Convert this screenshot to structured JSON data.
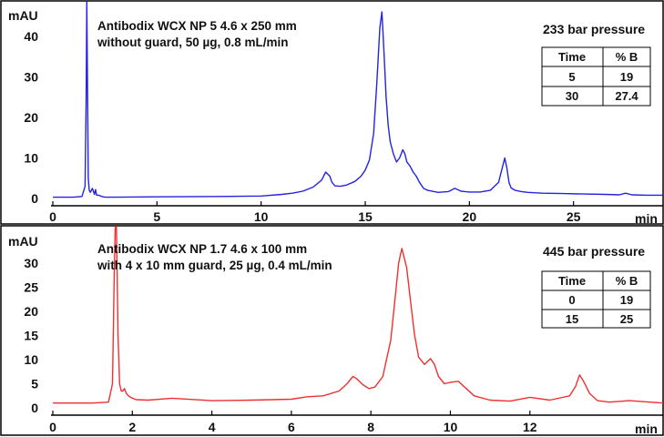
{
  "chart_data": [
    {
      "type": "line",
      "ylabel": "mAU",
      "xlabel": "min",
      "xlim": [
        0,
        29.3
      ],
      "ylim": [
        -1.8,
        48.5
      ],
      "xticks": [
        "0",
        "5",
        "10",
        "15",
        "20",
        "25"
      ],
      "yticks": [
        "0",
        "10",
        "20",
        "30",
        "40"
      ],
      "annotation": [
        "Antibodix WCX NP 5 4.6 x 250 mm",
        "without guard, 50 µg, 0.8 mL/min"
      ],
      "pressure": "233 bar pressure",
      "gradient_table": {
        "headers": [
          "Time",
          "% B"
        ],
        "rows": [
          [
            "5",
            "19"
          ],
          [
            "30",
            "27.4"
          ]
        ]
      },
      "color": "#2323e0",
      "series": [
        {
          "x": [
            0,
            1.0,
            1.4,
            1.55,
            1.6,
            1.63,
            1.66,
            1.7,
            1.75,
            1.8,
            1.9,
            2.0,
            2.05,
            2.1,
            2.2,
            2.35,
            2.5,
            3.0,
            5,
            8,
            10,
            11,
            11.5,
            12,
            12.5,
            12.9,
            13.1,
            13.3,
            13.4,
            13.55,
            13.8,
            14.1,
            14.5,
            14.8,
            15.0,
            15.2,
            15.4,
            15.55,
            15.7,
            15.8,
            15.9,
            16.0,
            16.1,
            16.2,
            16.35,
            16.5,
            16.65,
            16.8,
            16.9,
            17.0,
            17.15,
            17.3,
            17.45,
            17.6,
            17.8,
            18.0,
            18.5,
            19.0,
            19.3,
            19.6,
            20.0,
            20.5,
            21.0,
            21.4,
            21.6,
            21.7,
            21.8,
            21.9,
            22.0,
            22.2,
            22.5,
            22.8,
            23.5,
            24.5,
            25.5,
            26.5,
            27.2,
            27.5,
            27.8,
            28.5,
            29.3
          ],
          "y": [
            0.3,
            0.3,
            0.5,
            3,
            25,
            60,
            30,
            5,
            2,
            1.5,
            2.5,
            1,
            2.2,
            0.8,
            0.8,
            0.5,
            0.3,
            0.3,
            0.4,
            0.5,
            0.6,
            1.0,
            1.3,
            1.8,
            2.8,
            4.5,
            6.5,
            5.5,
            4.0,
            3.1,
            3.0,
            3.3,
            4.2,
            5.5,
            7.0,
            9.5,
            16,
            28,
            42,
            46,
            36,
            25,
            18,
            14,
            11,
            9,
            10,
            12,
            11,
            9,
            8,
            6.5,
            5.5,
            4.0,
            2.5,
            2.0,
            1.5,
            1.7,
            2.5,
            1.8,
            1.6,
            1.6,
            2.0,
            4.0,
            8.0,
            10.0,
            7.5,
            4.0,
            2.6,
            2.0,
            1.7,
            1.5,
            1.3,
            1.2,
            1.1,
            1.0,
            0.9,
            1.3,
            0.9,
            0.8,
            0.8
          ]
        }
      ]
    },
    {
      "type": "line",
      "ylabel": "mAU",
      "xlabel": "min",
      "xlim": [
        0,
        15.35
      ],
      "ylim": [
        -1.5,
        37.5
      ],
      "xticks": [
        "0",
        "2",
        "4",
        "6",
        "8",
        "10",
        "12"
      ],
      "yticks": [
        "0",
        "5",
        "10",
        "15",
        "20",
        "25",
        "30"
      ],
      "annotation": [
        "Antibodix WCX NP 1.7 4.6 x 100  mm",
        "with 4 x 10 mm guard, 25 µg, 0.4 mL/min"
      ],
      "pressure": "445 bar pressure",
      "gradient_table": {
        "headers": [
          "Time",
          "% B"
        ],
        "rows": [
          [
            "0",
            "19"
          ],
          [
            "15",
            "25"
          ]
        ]
      },
      "color": "#f03030",
      "series": [
        {
          "x": [
            0,
            1.0,
            1.4,
            1.5,
            1.54,
            1.57,
            1.6,
            1.64,
            1.68,
            1.72,
            1.76,
            1.8,
            1.85,
            1.9,
            2.0,
            2.1,
            2.4,
            3.0,
            4.0,
            5.0,
            6.0,
            6.4,
            6.8,
            7.2,
            7.4,
            7.55,
            7.65,
            7.8,
            7.95,
            8.1,
            8.3,
            8.5,
            8.6,
            8.7,
            8.78,
            8.9,
            9.0,
            9.1,
            9.2,
            9.35,
            9.5,
            9.6,
            9.7,
            9.85,
            10.0,
            10.2,
            10.4,
            10.6,
            11.0,
            11.5,
            12.0,
            12.5,
            13.0,
            13.15,
            13.25,
            13.35,
            13.5,
            13.7,
            14.0,
            14.5,
            15.35
          ],
          "y": [
            1.0,
            1.0,
            1.2,
            5,
            25,
            60,
            45,
            15,
            5,
            3.5,
            3.5,
            4.0,
            3.0,
            2.5,
            2.0,
            1.7,
            1.6,
            2.0,
            1.5,
            1.6,
            1.8,
            2.3,
            2.5,
            3.5,
            5.0,
            6.5,
            6.0,
            4.8,
            4.0,
            4.3,
            6.5,
            14,
            22,
            30,
            33,
            29,
            22,
            15,
            10.5,
            9.0,
            10.2,
            9.0,
            6.5,
            5.0,
            5.3,
            5.5,
            4.0,
            2.5,
            1.6,
            1.4,
            2.2,
            1.6,
            2.5,
            4.5,
            6.8,
            5.5,
            3.0,
            1.5,
            1.2,
            1.5,
            1.0
          ]
        }
      ]
    }
  ]
}
